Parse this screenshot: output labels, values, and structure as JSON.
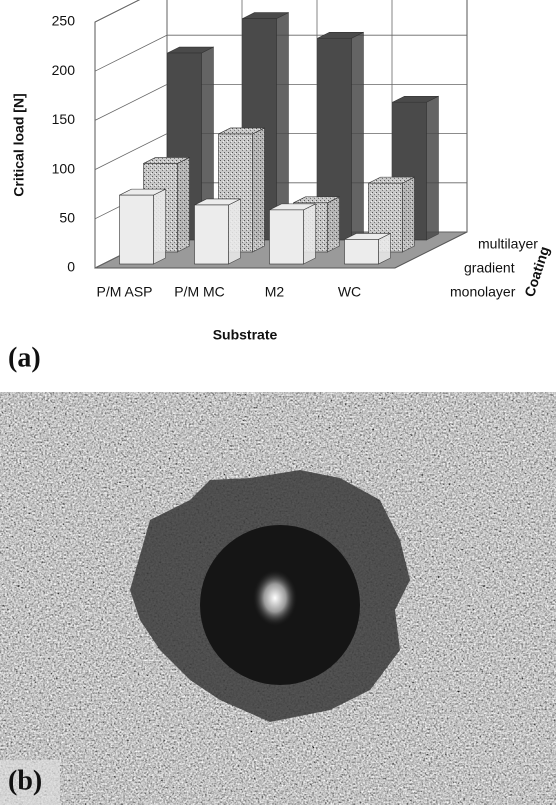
{
  "chart_data": {
    "type": "bar3d",
    "y_label": "Critical load [N]",
    "x_label": "Substrate",
    "z_label": "Coating",
    "categories": [
      "P/M ASP",
      "P/M MC",
      "M2",
      "WC"
    ],
    "series": [
      {
        "name": "monolayer",
        "color": "#ececec",
        "values": [
          70,
          60,
          55,
          25
        ]
      },
      {
        "name": "gradient",
        "color": "#a8a8a8",
        "values": [
          90,
          120,
          50,
          70
        ]
      },
      {
        "name": "multilayer",
        "color": "#4a4a4a",
        "values": [
          190,
          225,
          205,
          140
        ]
      }
    ],
    "ylim": [
      0,
      250
    ],
    "yticks": [
      0,
      50,
      100,
      150,
      200,
      250
    ],
    "grid": true
  },
  "panels": {
    "a": "(a)",
    "b": "(b)"
  }
}
